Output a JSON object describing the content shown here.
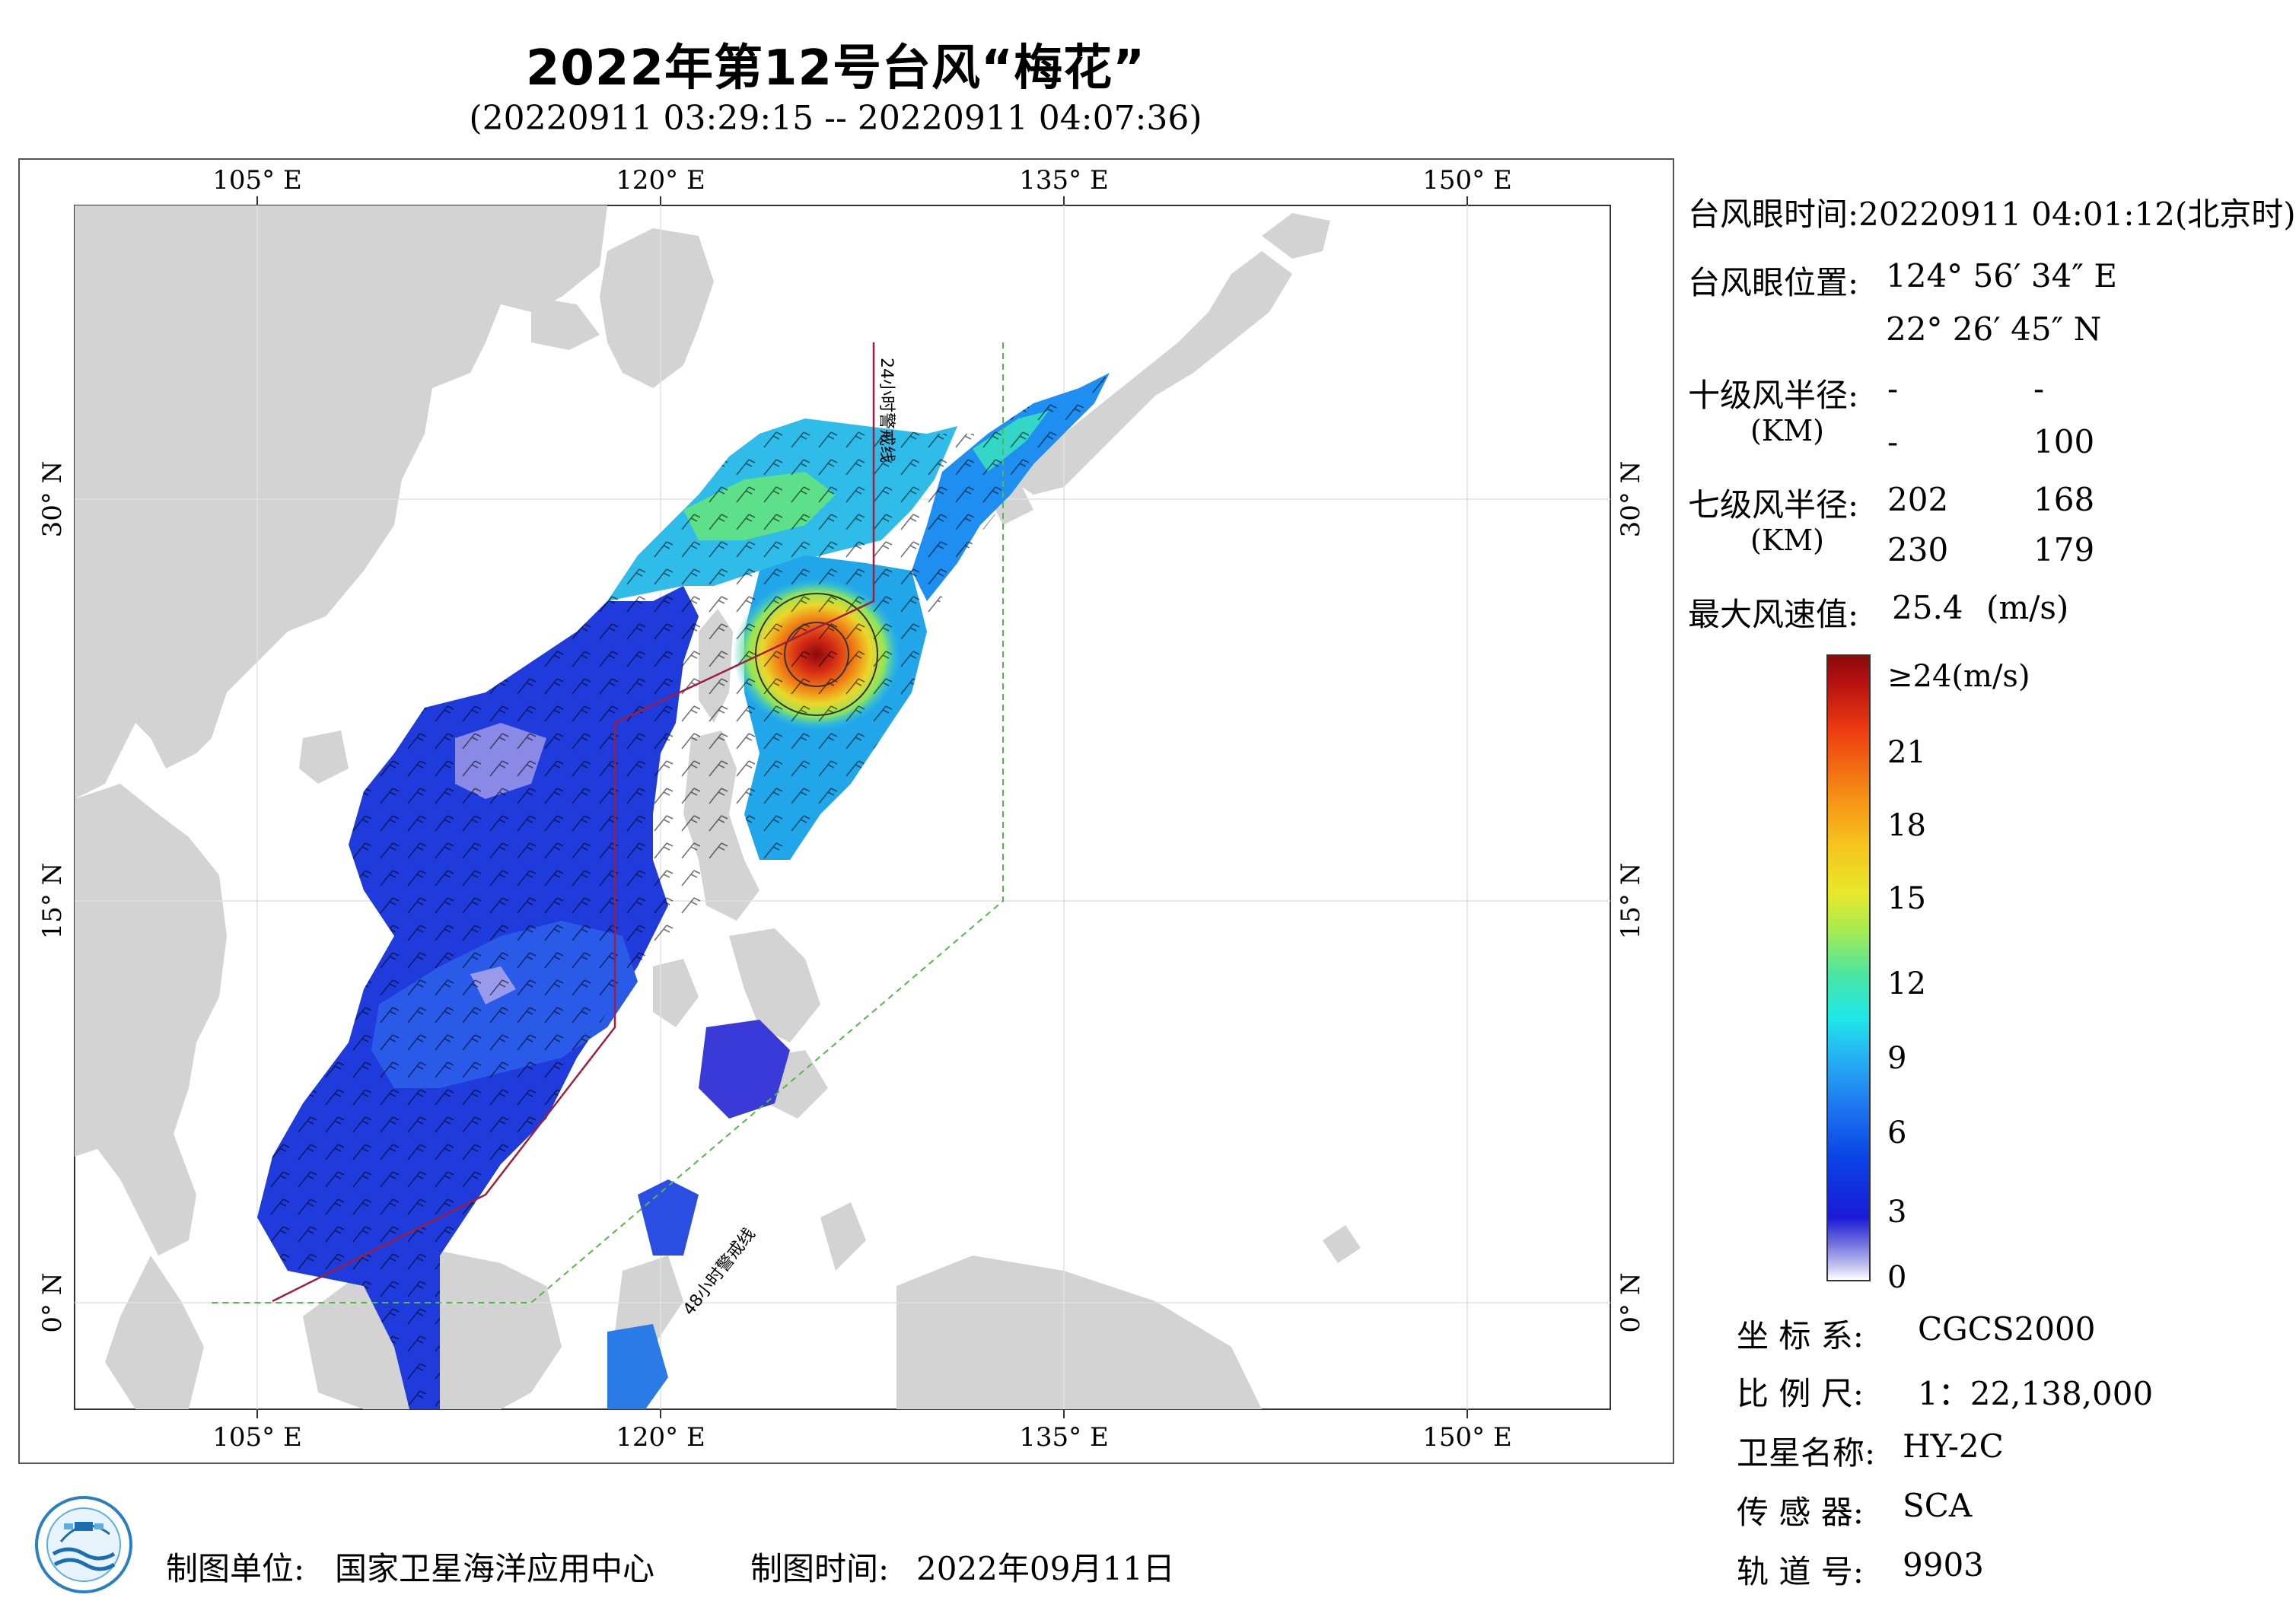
{
  "title": "2022年第12号台风“梅花”",
  "subtitle": "(20220911 03:29:15 -- 20220911 04:07:36)",
  "map": {
    "top_lon_labels": [
      "105° E",
      "120° E",
      "135° E",
      "150° E"
    ],
    "bottom_lon_labels": [
      "105° E",
      "120° E",
      "135° E",
      "150° E"
    ],
    "left_lat_labels": [
      "30° N",
      "15° N",
      "0° N"
    ],
    "right_lat_labels": [
      "30° N",
      "15° N",
      "0° N"
    ],
    "warning_24h_label": "24小时警戒线",
    "warning_48h_label": "48小时警戒线",
    "colors": {
      "land": "#d3d3d3",
      "warning_24h": "#a01e3c",
      "warning_48h": "#55b84a"
    }
  },
  "info": {
    "eye_time_label": "台风眼时间:",
    "eye_time_value": "20220911 04:01:12(北京时)",
    "eye_pos_label": "台风眼位置:",
    "eye_lon": "124° 56′ 34″ E",
    "eye_lat": "22° 26′ 45″ N",
    "r10_label": "十级风半径:",
    "r10_unit": "(KM)",
    "r10_values": [
      "-",
      "-",
      "-",
      "100"
    ],
    "r7_label": "七级风半径:",
    "r7_unit": "(KM)",
    "r7_values": [
      "202",
      "168",
      "230",
      "179"
    ],
    "max_wind_label": "最大风速值:",
    "max_wind_value": "25.4",
    "max_wind_unit": "(m/s)"
  },
  "colorbar": {
    "labels": [
      "≥24(m/s)",
      "21",
      "18",
      "15",
      "12",
      "9",
      "6",
      "3",
      "0"
    ]
  },
  "meta": {
    "crs_label": "坐 标 系:",
    "crs_value": "CGCS2000",
    "scale_label": "比 例 尺:",
    "scale_value": "1：22,138,000",
    "satellite_label": "卫星名称:",
    "satellite_value": "HY-2C",
    "sensor_label": "传 感 器:",
    "sensor_value": "SCA",
    "orbit_label": "轨 道 号:",
    "orbit_value": "9903"
  },
  "footer": {
    "org_label": "制图单位:",
    "org_value": "国家卫星海洋应用中心",
    "date_label": "制图时间:",
    "date_value": "2022年09月11日"
  }
}
